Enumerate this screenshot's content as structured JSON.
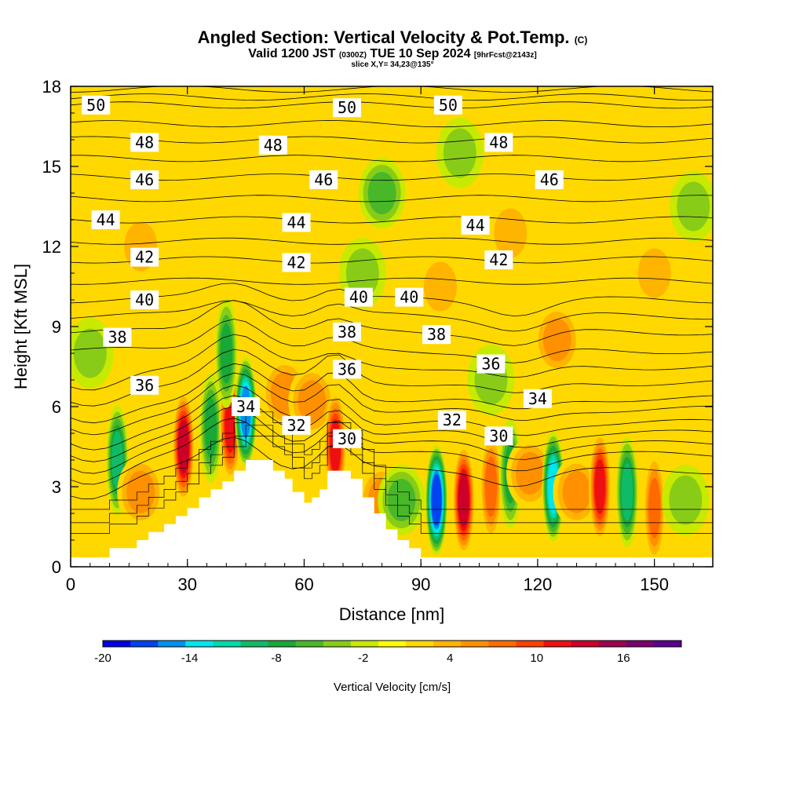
{
  "header": {
    "title_main": "Angled Section: Vertical Velocity & Pot.Temp.",
    "title_flag": "(C)",
    "subtitle_a": "Valid 1200 JST",
    "subtitle_b": "(0300Z)",
    "subtitle_c": "TUE 10 Sep 2024",
    "subtitle_d": "[9hrFcst@2143z]",
    "slice": "slice X,Y= 34,23@135°"
  },
  "chart_data": {
    "type": "heatmap",
    "title": "Angled Section: Vertical Velocity & Pot.Temp. (C)",
    "xlabel": "Distance [nm]",
    "ylabel": "Height [Kft MSL]",
    "xlim": [
      0,
      165
    ],
    "ylim": [
      0,
      18
    ],
    "x_ticks": [
      "0",
      "30",
      "60",
      "90",
      "120",
      "150"
    ],
    "x_tick_values": [
      0,
      30,
      60,
      90,
      120,
      150
    ],
    "y_ticks": [
      "0",
      "3",
      "6",
      "9",
      "12",
      "15",
      "18"
    ],
    "y_tick_values": [
      0,
      3,
      6,
      9,
      12,
      15,
      18
    ],
    "colorbar": {
      "label": "Vertical Velocity [cm/s]",
      "range": [
        -20,
        20
      ],
      "tick_labels": [
        "-20",
        "-14",
        "-8",
        "-2",
        "4",
        "10",
        "16"
      ],
      "tick_values": [
        -20,
        -14,
        -8,
        -2,
        4,
        10,
        16
      ],
      "colors": [
        "#0000e6",
        "#0044f0",
        "#0090ee",
        "#00e6ee",
        "#00d8a8",
        "#10bb66",
        "#18a838",
        "#48b828",
        "#88cc18",
        "#c8ea00",
        "#ffff00",
        "#ffd800",
        "#ffb400",
        "#ff9000",
        "#ff6a00",
        "#ff4000",
        "#ee1010",
        "#cc0028",
        "#a00050",
        "#7a0070",
        "#5a0090"
      ]
    },
    "terrain_profile": [
      [
        0,
        0.35
      ],
      [
        10,
        0.35
      ],
      [
        10,
        0.7
      ],
      [
        17,
        0.7
      ],
      [
        17,
        1.0
      ],
      [
        20,
        1.0
      ],
      [
        20,
        1.3
      ],
      [
        24,
        1.3
      ],
      [
        24,
        1.6
      ],
      [
        27,
        1.6
      ],
      [
        27,
        1.9
      ],
      [
        30,
        1.9
      ],
      [
        30,
        2.2
      ],
      [
        33,
        2.2
      ],
      [
        33,
        2.6
      ],
      [
        36,
        2.6
      ],
      [
        36,
        2.9
      ],
      [
        39,
        2.9
      ],
      [
        39,
        3.2
      ],
      [
        42,
        3.2
      ],
      [
        42,
        3.6
      ],
      [
        45,
        3.6
      ],
      [
        45,
        4.0
      ],
      [
        52,
        4.0
      ],
      [
        52,
        3.6
      ],
      [
        55,
        3.6
      ],
      [
        55,
        3.3
      ],
      [
        57,
        3.3
      ],
      [
        57,
        2.8
      ],
      [
        60,
        2.8
      ],
      [
        60,
        2.4
      ],
      [
        62,
        2.4
      ],
      [
        62,
        2.6
      ],
      [
        64,
        2.6
      ],
      [
        64,
        2.9
      ],
      [
        66,
        2.9
      ],
      [
        66,
        3.6
      ],
      [
        72,
        3.6
      ],
      [
        72,
        3.3
      ],
      [
        75,
        3.3
      ],
      [
        75,
        2.6
      ],
      [
        78,
        2.6
      ],
      [
        78,
        2.0
      ],
      [
        81,
        2.0
      ],
      [
        81,
        1.4
      ],
      [
        84,
        1.4
      ],
      [
        84,
        1.0
      ],
      [
        87,
        1.0
      ],
      [
        87,
        0.7
      ],
      [
        90,
        0.7
      ],
      [
        90,
        0.35
      ],
      [
        165,
        0.35
      ]
    ],
    "theta_contours": [
      {
        "label": "50",
        "level_y": 17.3
      },
      {
        "label": "48",
        "level_y": 16.0
      },
      {
        "label": "46",
        "level_y": 14.6
      },
      {
        "label": "44",
        "level_y": 13.0
      },
      {
        "label": "42",
        "level_y": 11.5
      },
      {
        "label": "40",
        "level_y": 10.0
      },
      {
        "label": "38",
        "level_y": 8.8
      },
      {
        "label": "36",
        "level_y": 7.5
      },
      {
        "label": "34",
        "level_y": 6.3
      },
      {
        "label": "32",
        "level_y": 5.4
      },
      {
        "label": "30",
        "level_y": 4.6
      }
    ],
    "contour_labels": [
      {
        "text": "50",
        "x": 6.5,
        "y": 17.3
      },
      {
        "text": "50",
        "x": 71,
        "y": 17.2
      },
      {
        "text": "50",
        "x": 97,
        "y": 17.3
      },
      {
        "text": "48",
        "x": 19,
        "y": 15.9
      },
      {
        "text": "48",
        "x": 52,
        "y": 15.8
      },
      {
        "text": "48",
        "x": 110,
        "y": 15.9
      },
      {
        "text": "46",
        "x": 19,
        "y": 14.5
      },
      {
        "text": "46",
        "x": 65,
        "y": 14.5
      },
      {
        "text": "46",
        "x": 123,
        "y": 14.5
      },
      {
        "text": "44",
        "x": 9,
        "y": 13.0
      },
      {
        "text": "44",
        "x": 58,
        "y": 12.9
      },
      {
        "text": "44",
        "x": 104,
        "y": 12.8
      },
      {
        "text": "42",
        "x": 19,
        "y": 11.6
      },
      {
        "text": "42",
        "x": 58,
        "y": 11.4
      },
      {
        "text": "42",
        "x": 110,
        "y": 11.5
      },
      {
        "text": "40",
        "x": 19,
        "y": 10.0
      },
      {
        "text": "40",
        "x": 74,
        "y": 10.1
      },
      {
        "text": "40",
        "x": 87,
        "y": 10.1
      },
      {
        "text": "38",
        "x": 12,
        "y": 8.6
      },
      {
        "text": "38",
        "x": 71,
        "y": 8.8
      },
      {
        "text": "38",
        "x": 94,
        "y": 8.7
      },
      {
        "text": "36",
        "x": 19,
        "y": 6.8
      },
      {
        "text": "36",
        "x": 71,
        "y": 7.4
      },
      {
        "text": "36",
        "x": 108,
        "y": 7.6
      },
      {
        "text": "34",
        "x": 45,
        "y": 6.0
      },
      {
        "text": "34",
        "x": 120,
        "y": 6.3
      },
      {
        "text": "32",
        "x": 58,
        "y": 5.3
      },
      {
        "text": "32",
        "x": 98,
        "y": 5.5
      },
      {
        "text": "30",
        "x": 71,
        "y": 4.8
      },
      {
        "text": "30",
        "x": 110,
        "y": 4.9
      }
    ],
    "velocity_features": [
      {
        "x": 5,
        "y": 15.5,
        "value": 2
      },
      {
        "x": 18,
        "y": 12,
        "value": 3
      },
      {
        "x": 35,
        "y": 16,
        "value": 2
      },
      {
        "x": 80,
        "y": 14,
        "value": -5
      },
      {
        "x": 75,
        "y": 11,
        "value": -3
      },
      {
        "x": 100,
        "y": 15.5,
        "value": -3
      },
      {
        "x": 95,
        "y": 10.5,
        "value": 4
      },
      {
        "x": 113,
        "y": 12.5,
        "value": 3
      },
      {
        "x": 125,
        "y": 8.5,
        "value": 6
      },
      {
        "x": 150,
        "y": 11,
        "value": 3
      },
      {
        "x": 160,
        "y": 13.5,
        "value": -4
      },
      {
        "x": 5,
        "y": 8,
        "value": -4
      },
      {
        "x": 12,
        "y": 4,
        "value": -9
      },
      {
        "x": 18,
        "y": 2.8,
        "value": 5
      },
      {
        "x": 29,
        "y": 4.5,
        "value": 13
      },
      {
        "x": 36,
        "y": 5.2,
        "value": -8
      },
      {
        "x": 41,
        "y": 5.3,
        "value": 12
      },
      {
        "x": 45,
        "y": 5.8,
        "value": -16
      },
      {
        "x": 55,
        "y": 6.5,
        "value": 5
      },
      {
        "x": 62,
        "y": 6.2,
        "value": 6
      },
      {
        "x": 68,
        "y": 4.5,
        "value": 12
      },
      {
        "x": 80,
        "y": 2.5,
        "value": 5
      },
      {
        "x": 85,
        "y": 2.5,
        "value": -6
      },
      {
        "x": 94,
        "y": 2.5,
        "value": -18
      },
      {
        "x": 101,
        "y": 2.5,
        "value": 14
      },
      {
        "x": 108,
        "y": 3,
        "value": 8
      },
      {
        "x": 113,
        "y": 3.5,
        "value": -7
      },
      {
        "x": 118,
        "y": 3.5,
        "value": 5
      },
      {
        "x": 124,
        "y": 3.0,
        "value": -13
      },
      {
        "x": 130,
        "y": 2.8,
        "value": 6
      },
      {
        "x": 136,
        "y": 3.0,
        "value": 11
      },
      {
        "x": 143,
        "y": 2.8,
        "value": -9
      },
      {
        "x": 150,
        "y": 2.2,
        "value": 8
      },
      {
        "x": 158,
        "y": 2.5,
        "value": -3
      },
      {
        "x": 40,
        "y": 8,
        "value": -8
      },
      {
        "x": 108,
        "y": 7,
        "value": -3
      }
    ]
  }
}
